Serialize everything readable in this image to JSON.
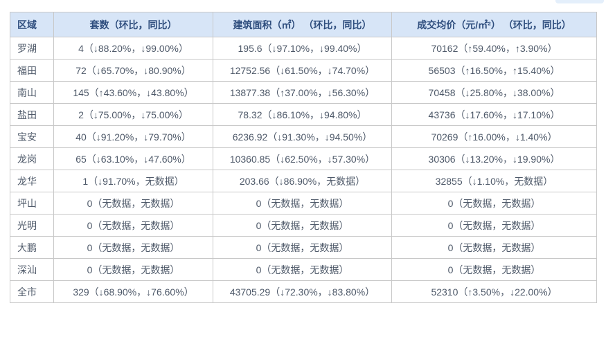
{
  "colors": {
    "header_bg": "#d7e5f7",
    "header_text": "#2f4e7e",
    "body_text": "#4e5969",
    "border": "#c8c8c8"
  },
  "chart_data": {
    "type": "table",
    "columns": [
      "区域",
      "套数（环比，同比）",
      "建筑面积（㎡） （环比，同比）",
      "成交均价（元/㎡²） （环比，同比）"
    ],
    "rows": [
      [
        "罗湖",
        "4（↓88.20%，↓99.00%）",
        "195.6（↓97.10%，↓99.40%）",
        "70162（↑59.40%，↑3.90%）"
      ],
      [
        "福田",
        "72（↓65.70%，↓80.90%）",
        "12752.56（↓61.50%，↓74.70%）",
        "56503（↑16.50%，↑15.40%）"
      ],
      [
        "南山",
        "145（↑43.60%，↓43.80%）",
        "13877.38（↑37.00%，↓56.30%）",
        "70458（↓25.80%，↓38.00%）"
      ],
      [
        "盐田",
        "2（↓75.00%，↓75.00%）",
        "78.32（↓86.10%，↓94.80%）",
        "43736（↓17.60%，↓17.10%）"
      ],
      [
        "宝安",
        "40（↓91.20%，↓79.70%）",
        "6236.92（↓91.30%，↓94.50%）",
        "70269（↑16.00%，↓1.40%）"
      ],
      [
        "龙岗",
        "65（↓63.10%，↓47.60%）",
        "10360.85（↓62.50%，↓57.30%）",
        "30306（↓13.20%，↓19.90%）"
      ],
      [
        "龙华",
        "1（↓91.70%，无数据）",
        "203.66（↓86.90%，无数据）",
        "32855（↓1.10%，无数据）"
      ],
      [
        "坪山",
        "0（无数据，无数据）",
        "0（无数据，无数据）",
        "0（无数据，无数据）"
      ],
      [
        "光明",
        "0（无数据，无数据）",
        "0（无数据，无数据）",
        "0（无数据，无数据）"
      ],
      [
        "大鹏",
        "0（无数据，无数据）",
        "0（无数据，无数据）",
        "0（无数据，无数据）"
      ],
      [
        "深汕",
        "0（无数据，无数据）",
        "0（无数据，无数据）",
        "0（无数据，无数据）"
      ],
      [
        "全市",
        "329（↓68.90%，↓76.60%）",
        "43705.29（↓72.30%，↓83.80%）",
        "52310（↑3.50%，↓22.00%）"
      ]
    ]
  }
}
